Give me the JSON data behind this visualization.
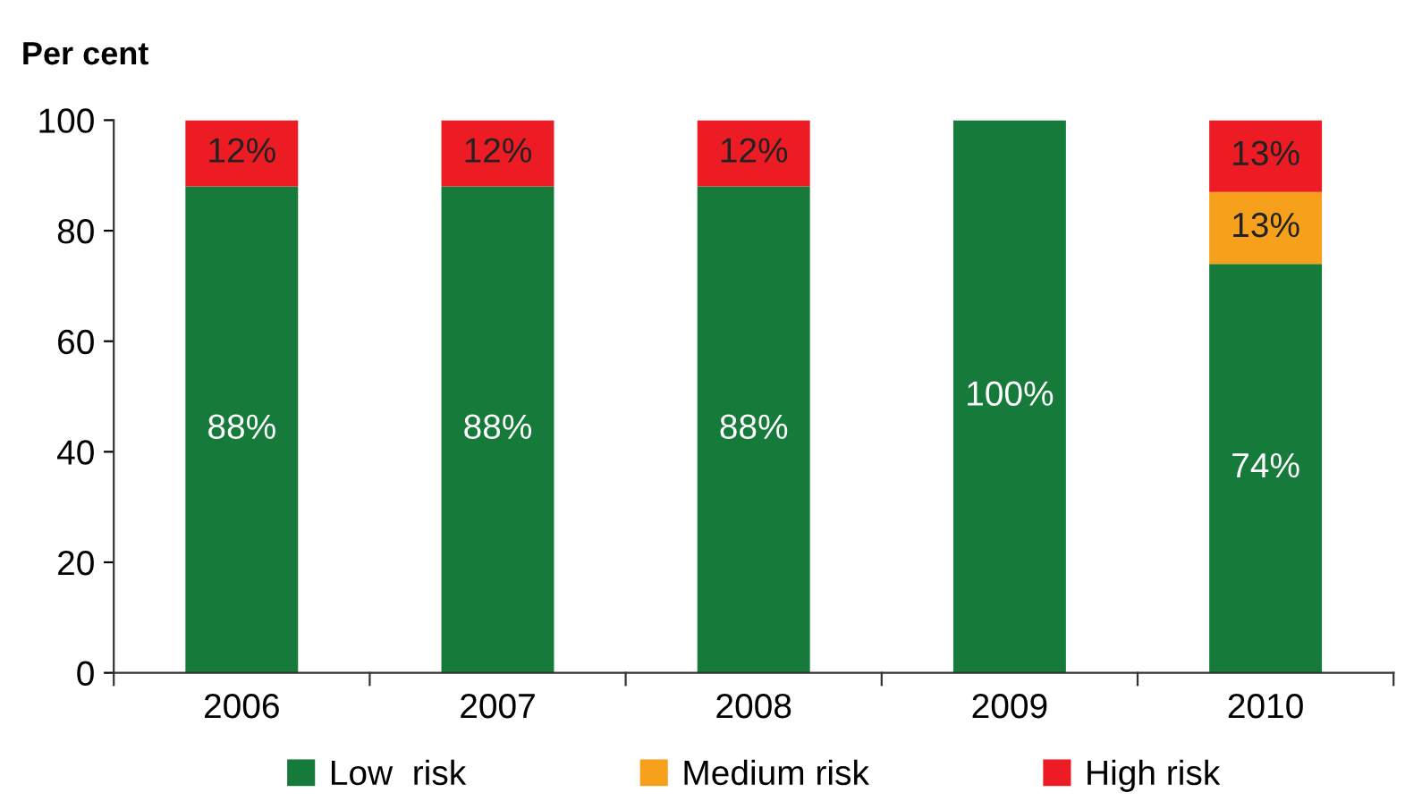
{
  "chart_data": {
    "type": "bar",
    "stacked": true,
    "ylabel": "Per cent",
    "categories": [
      "2006",
      "2007",
      "2008",
      "2009",
      "2010"
    ],
    "series": [
      {
        "name": "Low  risk",
        "color": "#157a3a",
        "values": [
          88,
          88,
          88,
          100,
          74
        ],
        "value_labels": [
          "88%",
          "88%",
          "88%",
          "100%",
          "74%"
        ]
      },
      {
        "name": "Medium risk",
        "color": "#f7a01c",
        "values": [
          null,
          null,
          null,
          null,
          13
        ],
        "value_labels": [
          null,
          null,
          null,
          null,
          "13%"
        ]
      },
      {
        "name": "High risk",
        "color": "#ed1c24",
        "values": [
          12,
          12,
          12,
          null,
          13
        ],
        "value_labels": [
          "12%",
          "12%",
          "12%",
          null,
          "13%"
        ]
      }
    ],
    "ylim": [
      0,
      100
    ],
    "yticks": [
      0,
      20,
      40,
      60,
      80,
      100
    ],
    "grid": false,
    "legend": "bottom"
  }
}
